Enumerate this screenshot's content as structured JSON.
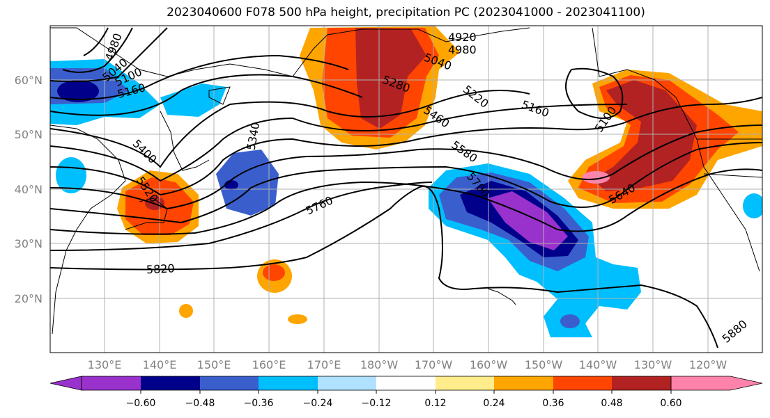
{
  "title": "2023040600 F078 500 hPa height, precipitation PC (2023041000 - 2023041100)",
  "lat_labels": [
    "60°N",
    "50°N",
    "40°N",
    "30°N",
    "20°N"
  ],
  "lon_labels": [
    "130°E",
    "140°E",
    "150°E",
    "160°E",
    "170°E",
    "180°W",
    "170°W",
    "160°W",
    "150°W",
    "140°W",
    "130°W",
    "120°W"
  ],
  "contour_labels": [
    "4920",
    "4980",
    "4980",
    "5040",
    "5040",
    "5100",
    "5100",
    "5160",
    "5160",
    "5220",
    "5280",
    "5340",
    "5400",
    "5460",
    "5520",
    "5580",
    "5640",
    "5700",
    "5760",
    "5820",
    "5880"
  ],
  "colorbar": {
    "ticks": [
      "−0.60",
      "−0.48",
      "−0.36",
      "−0.24",
      "−0.12",
      "0.12",
      "0.24",
      "0.36",
      "0.48",
      "0.60"
    ],
    "colors": [
      "#9932cc",
      "#00008b",
      "#3a5fcd",
      "#00bfff",
      "#b0e2ff",
      "#ffffff",
      "#ffec8b",
      "#ffa500",
      "#ff4500",
      "#b22222",
      "#ff82ab"
    ]
  }
}
